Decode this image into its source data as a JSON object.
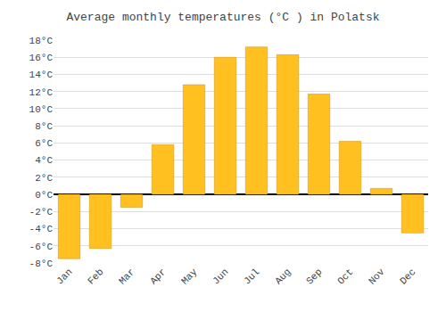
{
  "chart_data": {
    "type": "bar",
    "title": "Average monthly temperatures (°C ) in Polatsk",
    "categories": [
      "Jan",
      "Feb",
      "Mar",
      "Apr",
      "May",
      "Jun",
      "Jul",
      "Aug",
      "Sep",
      "Oct",
      "Nov",
      "Dec"
    ],
    "values": [
      -7.5,
      -6.3,
      -1.5,
      5.8,
      12.8,
      16.0,
      17.2,
      16.3,
      11.7,
      6.2,
      0.7,
      -4.5
    ],
    "color": "#FFC020",
    "ylim": [
      -8,
      18
    ],
    "yticks": [
      {
        "value": -8,
        "label": "-8°C"
      },
      {
        "value": -6,
        "label": "-6°C"
      },
      {
        "value": -4,
        "label": "-4°C"
      },
      {
        "value": -2,
        "label": "-2°C"
      },
      {
        "value": 0,
        "label": "0°C"
      },
      {
        "value": 2,
        "label": "2°C"
      },
      {
        "value": 4,
        "label": "4°C"
      },
      {
        "value": 6,
        "label": "6°C"
      },
      {
        "value": 8,
        "label": "8°C"
      },
      {
        "value": 10,
        "label": "10°C"
      },
      {
        "value": 12,
        "label": "12°C"
      },
      {
        "value": 14,
        "label": "14°C"
      },
      {
        "value": 16,
        "label": "16°C"
      },
      {
        "value": 18,
        "label": "18°C"
      }
    ],
    "grid": true
  }
}
